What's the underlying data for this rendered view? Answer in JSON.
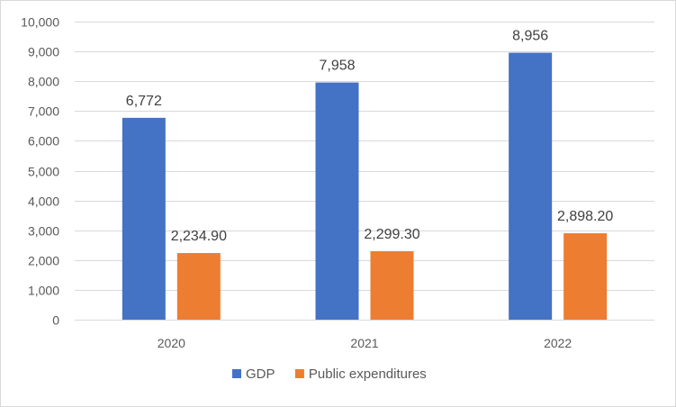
{
  "chart_data": {
    "type": "bar",
    "title": "",
    "xlabel": "",
    "ylabel": "",
    "categories": [
      "2020",
      "2021",
      "2022"
    ],
    "series": [
      {
        "name": "GDP",
        "color": "#4472C4",
        "values": [
          6772,
          7958,
          8956
        ],
        "labels": [
          "6,772",
          "7,958",
          "8,956"
        ]
      },
      {
        "name": "Public expenditures",
        "color": "#ED7D31",
        "values": [
          2234.9,
          2299.3,
          2898.2
        ],
        "labels": [
          "2,234.90",
          "2,299.30",
          "2,898.20"
        ]
      }
    ],
    "ylim": [
      0,
      10000
    ],
    "ytick_values": [
      0,
      1000,
      2000,
      3000,
      4000,
      5000,
      6000,
      7000,
      8000,
      9000,
      10000
    ],
    "ytick_labels": [
      "0",
      "1,000",
      "2,000",
      "3,000",
      "4,000",
      "5,000",
      "6,000",
      "7,000",
      "8,000",
      "9,000",
      "10,000"
    ],
    "grid": true,
    "gridline_color": "#d9d9d9",
    "legend_position": "bottom"
  }
}
